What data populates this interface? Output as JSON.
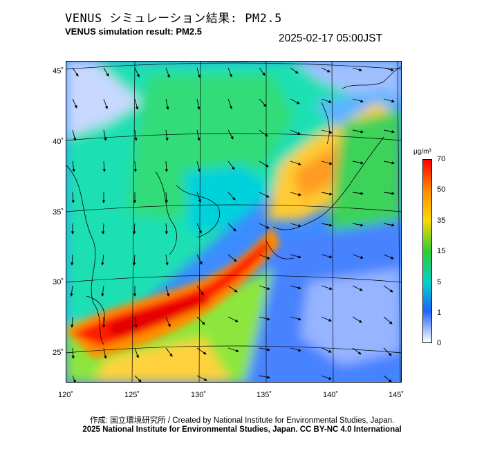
{
  "title_jp": "VENUS シミュレーション結果: PM2.5",
  "title_en": "VENUS simulation result: PM2.5",
  "timestamp": "2025-02-17 05:00JST",
  "lat_labels": [
    "45˚",
    "40˚",
    "35˚",
    "30˚",
    "25˚"
  ],
  "lon_labels": [
    "120˚",
    "125˚",
    "130˚",
    "135˚",
    "140˚",
    "145˚"
  ],
  "colorbar": {
    "unit": "μg/m³",
    "ticks": [
      "70",
      "50",
      "35",
      "15",
      "5",
      "1",
      "0"
    ],
    "colors": [
      "#ff0000",
      "#ff8c00",
      "#ffd700",
      "#32cd32",
      "#00d2c8",
      "#1e64ff",
      "#ffffff"
    ]
  },
  "footer": {
    "credit": "作成: 国立環境研究所 / Created by National Institute for Environmental Studies, Japan.",
    "copyright": "2025 National Institute for Environmental Studies, Japan. CC BY-NC 4.0 International"
  }
}
